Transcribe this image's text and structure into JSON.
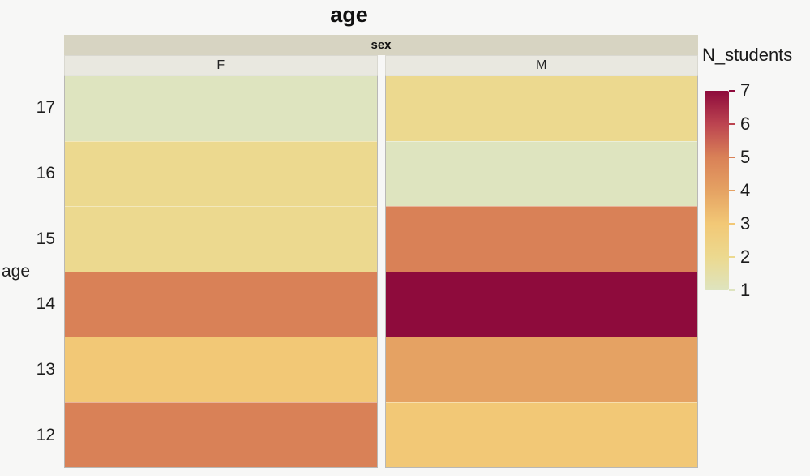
{
  "title": "age",
  "facet_strip_label": "sex",
  "y_axis_title": "age",
  "legend": {
    "title": "N_students",
    "tick_labels": [
      "7",
      "6",
      "5",
      "4",
      "3",
      "2",
      "1"
    ],
    "bar_top_value": 7,
    "bar_bottom_value": 1
  },
  "colors": {
    "background": "#f7f7f6",
    "facet_strip_bg": "#d7d4c2",
    "facet_header_bg": "#e9e8e0",
    "panel_border": "#b9b8b5"
  },
  "chart_data": {
    "type": "heatmap",
    "title": "age",
    "facet_variable": "sex",
    "x_categories": [
      "F",
      "M"
    ],
    "y_categories": [
      "17",
      "16",
      "15",
      "14",
      "13",
      "12"
    ],
    "ylabel": "age",
    "value_label": "N_students",
    "value_range": [
      1,
      7
    ],
    "series": [
      {
        "name": "F",
        "values": [
          1,
          2,
          2,
          5,
          3,
          5
        ]
      },
      {
        "name": "M",
        "values": [
          2,
          1,
          5,
          7,
          4,
          3
        ]
      }
    ],
    "color_scale": {
      "1": "#dee4bf",
      "2": "#ecd98f",
      "3": "#f2c876",
      "4": "#e5a263",
      "5": "#d98157",
      "6": "#bc4450",
      "7": "#8e0b3c"
    },
    "legend_position": "right",
    "grid": false
  }
}
